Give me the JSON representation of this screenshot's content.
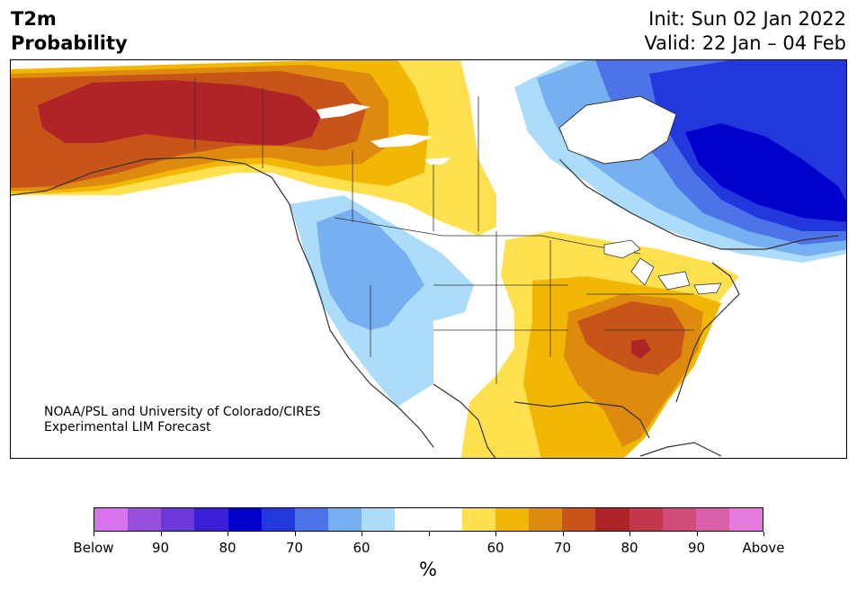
{
  "header": {
    "title_line1": "T2m",
    "title_line2": "Probability",
    "init": "Init: Sun 02 Jan 2022",
    "valid": "Valid: 22 Jan – 04 Feb"
  },
  "credit": {
    "line1": "NOAA/PSL and University of Colorado/CIRES",
    "line2": "Experimental LIM Forecast"
  },
  "colorbar": {
    "unit": "%",
    "colors": [
      "#d774ec",
      "#9a50de",
      "#6d38d8",
      "#3a1fd6",
      "#0000cc",
      "#2338dc",
      "#4c73e7",
      "#77b0f0",
      "#acdcfa",
      "#ffffff",
      "#ffffff",
      "#ffe14f",
      "#f2b705",
      "#de8a0f",
      "#c75418",
      "#b02428",
      "#c4374a",
      "#cf4c7a",
      "#da5fa9",
      "#e77bdd"
    ],
    "tick_labels": [
      "Below",
      "90",
      "80",
      "70",
      "60",
      "",
      "60",
      "70",
      "80",
      "90",
      "Above"
    ]
  },
  "legend_colors": {
    "above_60": "#ffe14f",
    "above_65": "#f2b705",
    "above_70": "#de8a0f",
    "above_75": "#c75418",
    "above_80": "#b02428",
    "above_85": "#c4374a",
    "below_60": "#acdcfa",
    "below_65": "#77b0f0",
    "below_70": "#4c73e7",
    "below_75": "#2338dc",
    "below_80": "#0000cc"
  }
}
